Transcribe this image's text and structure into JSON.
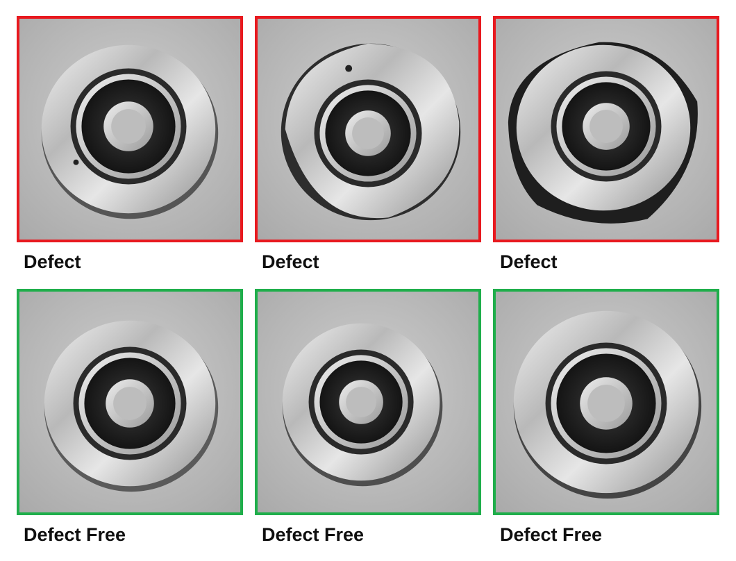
{
  "colors": {
    "defect_border": "#e8191f",
    "defect_free_border": "#1fae4b"
  },
  "images": [
    {
      "label": "Defect",
      "status": "defect",
      "subject": "impeller-casting"
    },
    {
      "label": "Defect",
      "status": "defect",
      "subject": "impeller-casting"
    },
    {
      "label": "Defect",
      "status": "defect",
      "subject": "impeller-casting"
    },
    {
      "label": "Defect Free",
      "status": "defect-free",
      "subject": "impeller-casting"
    },
    {
      "label": "Defect Free",
      "status": "defect-free",
      "subject": "impeller-casting"
    },
    {
      "label": "Defect Free",
      "status": "defect-free",
      "subject": "impeller-casting"
    }
  ]
}
